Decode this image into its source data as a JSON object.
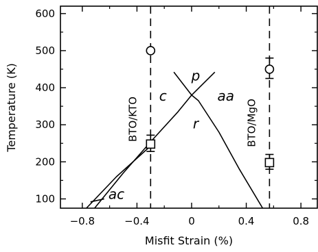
{
  "chart_data": {
    "type": "scatter",
    "title": "",
    "xlabel": "Misfit Strain (%)",
    "ylabel": "Temperature (K)",
    "xlim": [
      -0.96,
      0.92
    ],
    "ylim": [
      75,
      620
    ],
    "xticks": [
      -0.8,
      -0.4,
      0,
      0.4,
      0.8
    ],
    "xtick_labels": [
      "−0.8",
      "−0.4",
      "0",
      "0.4",
      "0.8"
    ],
    "yticks": [
      100,
      200,
      300,
      400,
      500,
      600
    ],
    "ytick_labels": [
      "100",
      "200",
      "300",
      "400",
      "500",
      "600"
    ],
    "grid": false,
    "phase_boundaries": [
      {
        "name": "c-r",
        "points": [
          [
            -0.71,
            75
          ],
          [
            -0.5,
            170
          ],
          [
            -0.29,
            258
          ],
          [
            -0.1,
            335
          ],
          [
            0,
            380
          ]
        ]
      },
      {
        "name": "ac-c",
        "points": [
          [
            -0.77,
            75
          ],
          [
            -0.55,
            160
          ],
          [
            -0.3,
            243
          ]
        ]
      },
      {
        "name": "r-right",
        "points": [
          [
            0,
            380
          ],
          [
            0.05,
            365
          ],
          [
            0.2,
            280
          ],
          [
            0.35,
            180
          ],
          [
            0.52,
            75
          ]
        ]
      },
      {
        "name": "p-c",
        "points": [
          [
            -0.13,
            442
          ],
          [
            0,
            380
          ]
        ]
      },
      {
        "name": "p-aa",
        "points": [
          [
            0.17,
            442
          ],
          [
            0,
            380
          ]
        ]
      }
    ],
    "substrate_lines": [
      {
        "label": "BTO/KTO",
        "x": -0.3
      },
      {
        "label": "BTO/MgO",
        "x": 0.57
      }
    ],
    "series": [
      {
        "marker": "circle",
        "points": [
          {
            "x": -0.3,
            "y": 500
          },
          {
            "x": 0.57,
            "y": 450,
            "err_lo": 425,
            "err_hi": 480
          }
        ]
      },
      {
        "marker": "square",
        "points": [
          {
            "x": -0.3,
            "y": 248,
            "err_lo": 228,
            "err_hi": 272
          },
          {
            "x": 0.57,
            "y": 198,
            "err_lo": 180,
            "err_hi": 220
          }
        ]
      }
    ],
    "phase_labels": [
      {
        "text": "p",
        "x": 0.03,
        "y": 420
      },
      {
        "text": "c",
        "x": -0.21,
        "y": 365
      },
      {
        "text": "aa",
        "x": 0.25,
        "y": 365
      },
      {
        "text": "r",
        "x": 0.03,
        "y": 290
      },
      {
        "text": "ac",
        "x": -0.55,
        "y": 100
      }
    ],
    "ac_leader": {
      "x1": -0.74,
      "y1": 92,
      "x2": -0.64,
      "y2": 100
    }
  }
}
